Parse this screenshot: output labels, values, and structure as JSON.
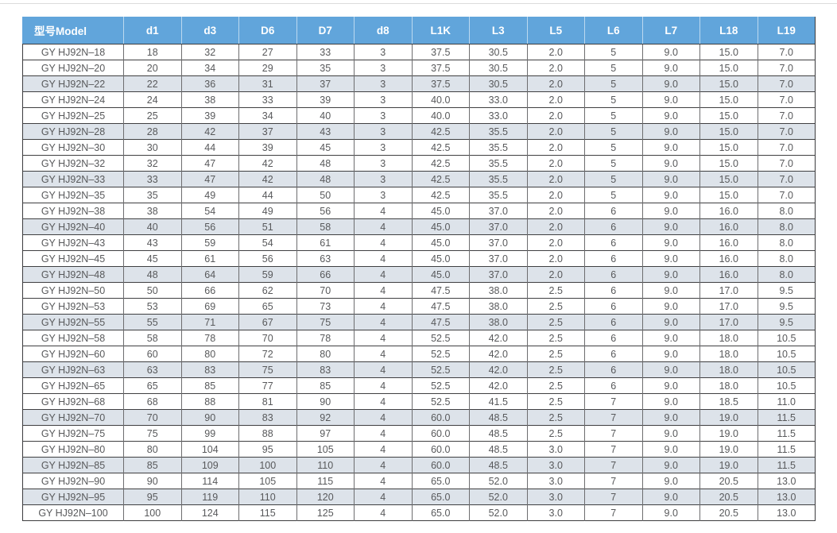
{
  "page": {
    "background": "#ffffff",
    "top_rule_color": "#dcdcdc"
  },
  "table": {
    "type": "table",
    "header_bg": "#61a5db",
    "header_text_color": "#ffffff",
    "shaded_row_bg": "#dde3ea",
    "border_color": "#3f3f41",
    "cell_text_color": "#58595b",
    "columns": [
      "型号Model",
      "d1",
      "d3",
      "D6",
      "D7",
      "d8",
      "L1K",
      "L3",
      "L5",
      "L6",
      "L7",
      "L18",
      "L19"
    ],
    "shaded_row_indices": [
      2,
      5,
      8,
      11,
      14,
      17,
      20,
      23,
      26,
      28
    ],
    "rows": [
      [
        "GY HJ92N–18",
        "18",
        "32",
        "27",
        "33",
        "3",
        "37.5",
        "30.5",
        "2.0",
        "5",
        "9.0",
        "15.0",
        "7.0"
      ],
      [
        "GY HJ92N–20",
        "20",
        "34",
        "29",
        "35",
        "3",
        "37.5",
        "30.5",
        "2.0",
        "5",
        "9.0",
        "15.0",
        "7.0"
      ],
      [
        "GY HJ92N–22",
        "22",
        "36",
        "31",
        "37",
        "3",
        "37.5",
        "30.5",
        "2.0",
        "5",
        "9.0",
        "15.0",
        "7.0"
      ],
      [
        "GY HJ92N–24",
        "24",
        "38",
        "33",
        "39",
        "3",
        "40.0",
        "33.0",
        "2.0",
        "5",
        "9.0",
        "15.0",
        "7.0"
      ],
      [
        "GY HJ92N–25",
        "25",
        "39",
        "34",
        "40",
        "3",
        "40.0",
        "33.0",
        "2.0",
        "5",
        "9.0",
        "15.0",
        "7.0"
      ],
      [
        "GY HJ92N–28",
        "28",
        "42",
        "37",
        "43",
        "3",
        "42.5",
        "35.5",
        "2.0",
        "5",
        "9.0",
        "15.0",
        "7.0"
      ],
      [
        "GY HJ92N–30",
        "30",
        "44",
        "39",
        "45",
        "3",
        "42.5",
        "35.5",
        "2.0",
        "5",
        "9.0",
        "15.0",
        "7.0"
      ],
      [
        "GY HJ92N–32",
        "32",
        "47",
        "42",
        "48",
        "3",
        "42.5",
        "35.5",
        "2.0",
        "5",
        "9.0",
        "15.0",
        "7.0"
      ],
      [
        "GY HJ92N–33",
        "33",
        "47",
        "42",
        "48",
        "3",
        "42.5",
        "35.5",
        "2.0",
        "5",
        "9.0",
        "15.0",
        "7.0"
      ],
      [
        "GY HJ92N–35",
        "35",
        "49",
        "44",
        "50",
        "3",
        "42.5",
        "35.5",
        "2.0",
        "5",
        "9.0",
        "15.0",
        "7.0"
      ],
      [
        "GY HJ92N–38",
        "38",
        "54",
        "49",
        "56",
        "4",
        "45.0",
        "37.0",
        "2.0",
        "6",
        "9.0",
        "16.0",
        "8.0"
      ],
      [
        "GY HJ92N–40",
        "40",
        "56",
        "51",
        "58",
        "4",
        "45.0",
        "37.0",
        "2.0",
        "6",
        "9.0",
        "16.0",
        "8.0"
      ],
      [
        "GY HJ92N–43",
        "43",
        "59",
        "54",
        "61",
        "4",
        "45.0",
        "37.0",
        "2.0",
        "6",
        "9.0",
        "16.0",
        "8.0"
      ],
      [
        "GY HJ92N–45",
        "45",
        "61",
        "56",
        "63",
        "4",
        "45.0",
        "37.0",
        "2.0",
        "6",
        "9.0",
        "16.0",
        "8.0"
      ],
      [
        "GY HJ92N–48",
        "48",
        "64",
        "59",
        "66",
        "4",
        "45.0",
        "37.0",
        "2.0",
        "6",
        "9.0",
        "16.0",
        "8.0"
      ],
      [
        "GY HJ92N–50",
        "50",
        "66",
        "62",
        "70",
        "4",
        "47.5",
        "38.0",
        "2.5",
        "6",
        "9.0",
        "17.0",
        "9.5"
      ],
      [
        "GY HJ92N–53",
        "53",
        "69",
        "65",
        "73",
        "4",
        "47.5",
        "38.0",
        "2.5",
        "6",
        "9.0",
        "17.0",
        "9.5"
      ],
      [
        "GY HJ92N–55",
        "55",
        "71",
        "67",
        "75",
        "4",
        "47.5",
        "38.0",
        "2.5",
        "6",
        "9.0",
        "17.0",
        "9.5"
      ],
      [
        "GY HJ92N–58",
        "58",
        "78",
        "70",
        "78",
        "4",
        "52.5",
        "42.0",
        "2.5",
        "6",
        "9.0",
        "18.0",
        "10.5"
      ],
      [
        "GY HJ92N–60",
        "60",
        "80",
        "72",
        "80",
        "4",
        "52.5",
        "42.0",
        "2.5",
        "6",
        "9.0",
        "18.0",
        "10.5"
      ],
      [
        "GY HJ92N–63",
        "63",
        "83",
        "75",
        "83",
        "4",
        "52.5",
        "42.0",
        "2.5",
        "6",
        "9.0",
        "18.0",
        "10.5"
      ],
      [
        "GY HJ92N–65",
        "65",
        "85",
        "77",
        "85",
        "4",
        "52.5",
        "42.0",
        "2.5",
        "6",
        "9.0",
        "18.0",
        "10.5"
      ],
      [
        "GY HJ92N–68",
        "68",
        "88",
        "81",
        "90",
        "4",
        "52.5",
        "41.5",
        "2.5",
        "7",
        "9.0",
        "18.5",
        "11.0"
      ],
      [
        "GY HJ92N–70",
        "70",
        "90",
        "83",
        "92",
        "4",
        "60.0",
        "48.5",
        "2.5",
        "7",
        "9.0",
        "19.0",
        "11.5"
      ],
      [
        "GY HJ92N–75",
        "75",
        "99",
        "88",
        "97",
        "4",
        "60.0",
        "48.5",
        "2.5",
        "7",
        "9.0",
        "19.0",
        "11.5"
      ],
      [
        "GY HJ92N–80",
        "80",
        "104",
        "95",
        "105",
        "4",
        "60.0",
        "48.5",
        "3.0",
        "7",
        "9.0",
        "19.0",
        "11.5"
      ],
      [
        "GY HJ92N–85",
        "85",
        "109",
        "100",
        "110",
        "4",
        "60.0",
        "48.5",
        "3.0",
        "7",
        "9.0",
        "19.0",
        "11.5"
      ],
      [
        "GY HJ92N–90",
        "90",
        "114",
        "105",
        "115",
        "4",
        "65.0",
        "52.0",
        "3.0",
        "7",
        "9.0",
        "20.5",
        "13.0"
      ],
      [
        "GY HJ92N–95",
        "95",
        "119",
        "110",
        "120",
        "4",
        "65.0",
        "52.0",
        "3.0",
        "7",
        "9.0",
        "20.5",
        "13.0"
      ],
      [
        "GY HJ92N–100",
        "100",
        "124",
        "115",
        "125",
        "4",
        "65.0",
        "52.0",
        "3.0",
        "7",
        "9.0",
        "20.5",
        "13.0"
      ]
    ]
  }
}
